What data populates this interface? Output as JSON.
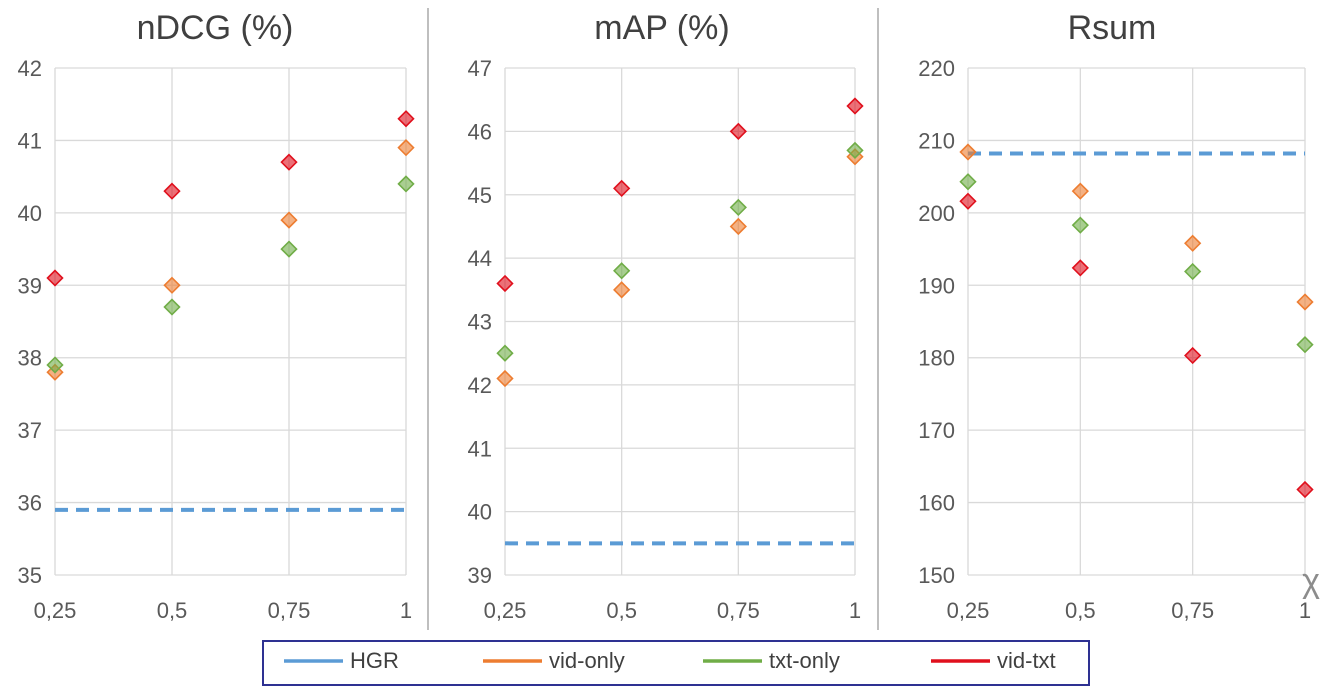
{
  "figure_label": "χ",
  "colors": {
    "HGR": "#5b9bd5",
    "vid-only": "#ed7d31",
    "txt-only": "#70ad47",
    "vid-txt": "#e0101d",
    "grid": "#d9d9d9",
    "legend_border": "#2e3192"
  },
  "legend": [
    {
      "key": "HGR",
      "label": "HGR",
      "style": "line"
    },
    {
      "key": "vid-only",
      "label": "vid-only",
      "style": "line"
    },
    {
      "key": "txt-only",
      "label": "txt-only",
      "style": "line"
    },
    {
      "key": "vid-txt",
      "label": "vid-txt",
      "style": "line"
    }
  ],
  "chart_data": [
    {
      "type": "scatter",
      "title": "nDCG (%)",
      "categories": [
        "0,25",
        "0,5",
        "0,75",
        "1"
      ],
      "x": [
        0.25,
        0.5,
        0.75,
        1
      ],
      "xlim": [
        0.25,
        1
      ],
      "ylim": [
        35,
        42
      ],
      "yticks": [
        "35",
        "36",
        "37",
        "38",
        "39",
        "40",
        "41",
        "42"
      ],
      "hline": {
        "name": "HGR",
        "value": 35.9,
        "style": "dashed"
      },
      "series": [
        {
          "name": "vid-only",
          "values": [
            37.8,
            39.0,
            39.9,
            40.9
          ]
        },
        {
          "name": "txt-only",
          "values": [
            37.9,
            38.7,
            39.5,
            40.4
          ]
        },
        {
          "name": "vid-txt",
          "values": [
            39.1,
            40.3,
            40.7,
            41.3
          ]
        }
      ]
    },
    {
      "type": "scatter",
      "title": "mAP (%)",
      "categories": [
        "0,25",
        "0,5",
        "0,75",
        "1"
      ],
      "x": [
        0.25,
        0.5,
        0.75,
        1
      ],
      "xlim": [
        0.25,
        1
      ],
      "ylim": [
        39,
        47
      ],
      "yticks": [
        "39",
        "40",
        "41",
        "42",
        "43",
        "44",
        "45",
        "46",
        "47"
      ],
      "hline": {
        "name": "HGR",
        "value": 39.5,
        "style": "dashed"
      },
      "series": [
        {
          "name": "vid-only",
          "values": [
            42.1,
            43.5,
            44.5,
            45.6
          ]
        },
        {
          "name": "txt-only",
          "values": [
            42.5,
            43.8,
            44.8,
            45.7
          ]
        },
        {
          "name": "vid-txt",
          "values": [
            43.6,
            45.1,
            46.0,
            46.4
          ]
        }
      ]
    },
    {
      "type": "scatter",
      "title": "Rsum",
      "categories": [
        "0,25",
        "0,5",
        "0,75",
        "1"
      ],
      "x": [
        0.25,
        0.5,
        0.75,
        1
      ],
      "xlim": [
        0.25,
        1
      ],
      "ylim": [
        150,
        220
      ],
      "yticks": [
        "150",
        "160",
        "170",
        "180",
        "190",
        "200",
        "210",
        "220"
      ],
      "hline": {
        "name": "HGR",
        "value": 208.2,
        "style": "dashed"
      },
      "series": [
        {
          "name": "vid-only",
          "values": [
            208.4,
            203.0,
            195.8,
            187.7
          ]
        },
        {
          "name": "txt-only",
          "values": [
            204.3,
            198.3,
            191.9,
            181.8
          ]
        },
        {
          "name": "vid-txt",
          "values": [
            201.6,
            192.4,
            180.3,
            161.8
          ]
        }
      ]
    }
  ]
}
